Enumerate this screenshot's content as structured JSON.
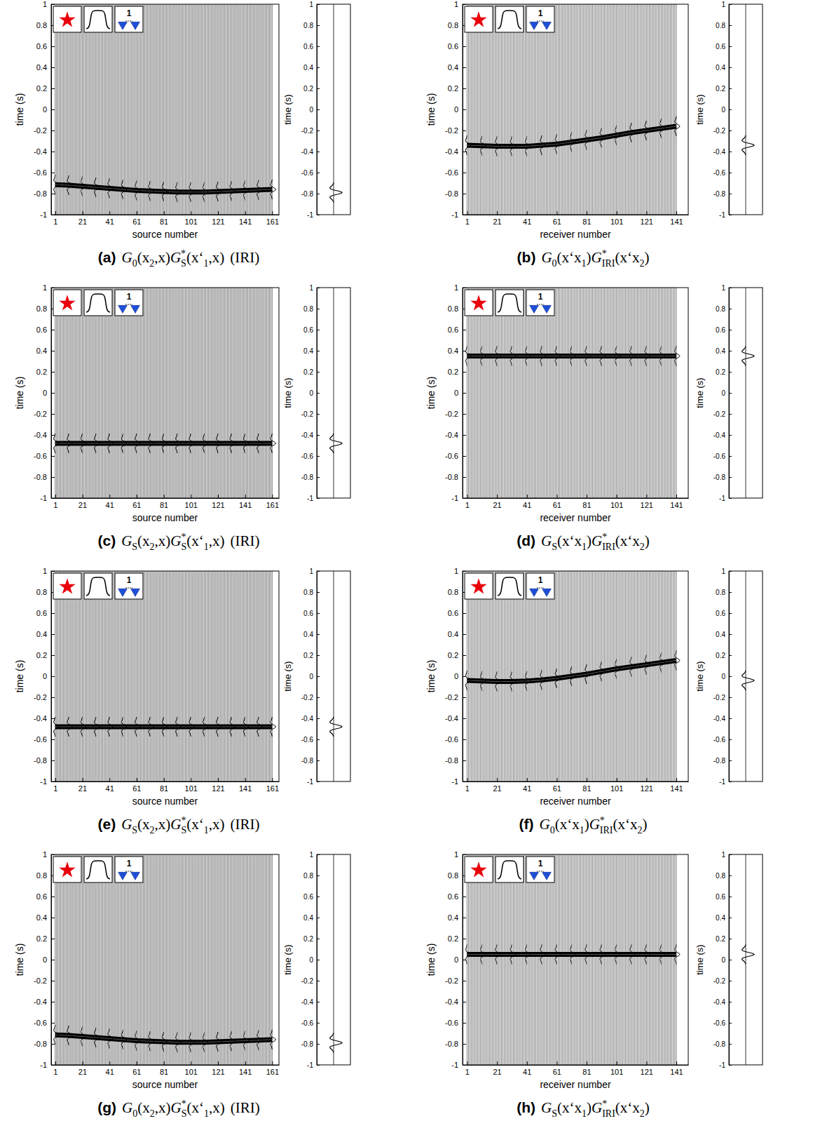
{
  "chart_data": [
    {
      "type": "wiggle",
      "caption": {
        "letter": "(a)",
        "formula": [
          {
            "text": "G",
            "sub": "0"
          },
          {
            "text": "(x",
            "sub": "2"
          },
          {
            "text": ",x)"
          },
          {
            "text": "G",
            "sup": "*",
            "sub": "S"
          },
          {
            "text": "(x‘",
            "sub": "1"
          },
          {
            "text": ",x)"
          }
        ],
        "suffix": "(IRI)"
      },
      "xlabel": "source number",
      "ylabel": "time (s)",
      "inset_label": "1",
      "xlim": [
        -2,
        166
      ],
      "xticks": [
        1,
        21,
        41,
        61,
        81,
        101,
        121,
        141,
        161
      ],
      "ylim": [
        -1,
        1
      ],
      "yticks": [
        -1,
        -0.8,
        -0.6,
        -0.4,
        -0.2,
        0,
        0.2,
        0.4,
        0.6,
        0.8,
        1
      ],
      "x": [
        1,
        11,
        21,
        31,
        41,
        51,
        61,
        71,
        81,
        91,
        101,
        111,
        121,
        131,
        141,
        151,
        161
      ],
      "values": [
        -0.715,
        -0.72,
        -0.73,
        -0.74,
        -0.75,
        -0.76,
        -0.77,
        -0.775,
        -0.78,
        -0.785,
        -0.785,
        -0.785,
        -0.78,
        -0.775,
        -0.77,
        -0.765,
        -0.76
      ],
      "stack": {
        "ylabel": "time (s)",
        "ylim": [
          -1,
          1
        ],
        "yticks": [
          -1,
          -0.8,
          -0.6,
          -0.4,
          -0.2,
          0,
          0.2,
          0.4,
          0.6,
          0.8,
          1
        ],
        "value": -0.79
      }
    },
    {
      "type": "wiggle",
      "caption": {
        "letter": "(b)",
        "formula": [
          {
            "text": "G",
            "sub": "0"
          },
          {
            "text": "(x‘x",
            "sub": "1"
          },
          {
            "text": ")"
          },
          {
            "text": "G",
            "sup": "*",
            "sub": "IRI"
          },
          {
            "text": "(x‘x",
            "sub": "2"
          },
          {
            "text": ")"
          }
        ]
      },
      "xlabel": "receiver number",
      "ylabel": "time (s)",
      "inset_label": "1",
      "xlim": [
        -2,
        149
      ],
      "xticks": [
        1,
        21,
        41,
        61,
        81,
        101,
        121,
        141
      ],
      "ylim": [
        -1,
        1
      ],
      "yticks": [
        -1,
        -0.8,
        -0.6,
        -0.4,
        -0.2,
        0,
        0.2,
        0.4,
        0.6,
        0.8,
        1
      ],
      "x": [
        1,
        11,
        21,
        31,
        41,
        51,
        61,
        71,
        81,
        91,
        101,
        111,
        121,
        131,
        141
      ],
      "values": [
        -0.34,
        -0.345,
        -0.35,
        -0.35,
        -0.35,
        -0.34,
        -0.33,
        -0.31,
        -0.29,
        -0.27,
        -0.245,
        -0.22,
        -0.2,
        -0.18,
        -0.16
      ],
      "stack": {
        "ylabel": "time (s)",
        "ylim": [
          -1,
          1
        ],
        "yticks": [
          -1,
          -0.8,
          -0.6,
          -0.4,
          -0.2,
          0,
          0.2,
          0.4,
          0.6,
          0.8,
          1
        ],
        "value": -0.34
      }
    },
    {
      "type": "wiggle",
      "caption": {
        "letter": "(c)",
        "formula": [
          {
            "text": "G",
            "sub": "S"
          },
          {
            "text": "(x",
            "sub": "2"
          },
          {
            "text": ",x)"
          },
          {
            "text": "G",
            "sup": "*",
            "sub": "S"
          },
          {
            "text": "(x‘",
            "sub": "1"
          },
          {
            "text": ",x)"
          }
        ],
        "suffix": "(IRI)"
      },
      "xlabel": "source number",
      "ylabel": "time (s)",
      "inset_label": "1",
      "xlim": [
        -2,
        166
      ],
      "xticks": [
        1,
        21,
        41,
        61,
        81,
        101,
        121,
        141,
        161
      ],
      "ylim": [
        -1,
        1
      ],
      "yticks": [
        -1,
        -0.8,
        -0.6,
        -0.4,
        -0.2,
        0,
        0.2,
        0.4,
        0.6,
        0.8,
        1
      ],
      "x": [
        1,
        11,
        21,
        31,
        41,
        51,
        61,
        71,
        81,
        91,
        101,
        111,
        121,
        131,
        141,
        151,
        161
      ],
      "values": [
        -0.48,
        -0.48,
        -0.48,
        -0.48,
        -0.48,
        -0.48,
        -0.48,
        -0.48,
        -0.48,
        -0.48,
        -0.48,
        -0.48,
        -0.48,
        -0.48,
        -0.48,
        -0.48,
        -0.48
      ],
      "stack": {
        "ylabel": "time (s)",
        "ylim": [
          -1,
          1
        ],
        "yticks": [
          -1,
          -0.8,
          -0.6,
          -0.4,
          -0.2,
          0,
          0.2,
          0.4,
          0.6,
          0.8,
          1
        ],
        "value": -0.48
      }
    },
    {
      "type": "wiggle",
      "caption": {
        "letter": "(d)",
        "formula": [
          {
            "text": "G",
            "sub": "S"
          },
          {
            "text": "(x‘x",
            "sub": "1"
          },
          {
            "text": ")"
          },
          {
            "text": "G",
            "sup": "*",
            "sub": "IRI"
          },
          {
            "text": "(x‘x",
            "sub": "2"
          },
          {
            "text": ")"
          }
        ]
      },
      "xlabel": "receiver number",
      "ylabel": "time (s)",
      "inset_label": "1",
      "xlim": [
        -2,
        149
      ],
      "xticks": [
        1,
        21,
        41,
        61,
        81,
        101,
        121,
        141
      ],
      "ylim": [
        -1,
        1
      ],
      "yticks": [
        -1,
        -0.8,
        -0.6,
        -0.4,
        -0.2,
        0,
        0.2,
        0.4,
        0.6,
        0.8,
        1
      ],
      "x": [
        1,
        11,
        21,
        31,
        41,
        51,
        61,
        71,
        81,
        91,
        101,
        111,
        121,
        131,
        141
      ],
      "values": [
        0.35,
        0.35,
        0.35,
        0.35,
        0.35,
        0.35,
        0.35,
        0.35,
        0.35,
        0.35,
        0.35,
        0.35,
        0.35,
        0.35,
        0.35
      ],
      "stack": {
        "ylabel": "time (s)",
        "ylim": [
          -1,
          1
        ],
        "yticks": [
          -1,
          -0.8,
          -0.6,
          -0.4,
          -0.2,
          0,
          0.2,
          0.4,
          0.6,
          0.8,
          1
        ],
        "value": 0.35
      }
    },
    {
      "type": "wiggle",
      "caption": {
        "letter": "(e)",
        "formula": [
          {
            "text": "G",
            "sub": "S"
          },
          {
            "text": "(x",
            "sub": "2"
          },
          {
            "text": ",x)"
          },
          {
            "text": "G",
            "sup": "*",
            "sub": "S"
          },
          {
            "text": "(x‘",
            "sub": "1"
          },
          {
            "text": ",x)"
          }
        ],
        "suffix": "(IRI)"
      },
      "xlabel": "source number",
      "ylabel": "time (s)",
      "inset_label": "1",
      "xlim": [
        -2,
        166
      ],
      "xticks": [
        1,
        21,
        41,
        61,
        81,
        101,
        121,
        141,
        161
      ],
      "ylim": [
        -1,
        1
      ],
      "yticks": [
        -1,
        -0.8,
        -0.6,
        -0.4,
        -0.2,
        0,
        0.2,
        0.4,
        0.6,
        0.8,
        1
      ],
      "x": [
        1,
        11,
        21,
        31,
        41,
        51,
        61,
        71,
        81,
        91,
        101,
        111,
        121,
        131,
        141,
        151,
        161
      ],
      "values": [
        -0.48,
        -0.48,
        -0.48,
        -0.48,
        -0.48,
        -0.48,
        -0.48,
        -0.48,
        -0.48,
        -0.48,
        -0.48,
        -0.48,
        -0.48,
        -0.48,
        -0.48,
        -0.48,
        -0.48
      ],
      "stack": {
        "ylabel": "time (s)",
        "ylim": [
          -1,
          1
        ],
        "yticks": [
          -1,
          -0.8,
          -0.6,
          -0.4,
          -0.2,
          0,
          0.2,
          0.4,
          0.6,
          0.8,
          1
        ],
        "value": -0.48
      }
    },
    {
      "type": "wiggle",
      "caption": {
        "letter": "(f)",
        "formula": [
          {
            "text": "G",
            "sub": "0"
          },
          {
            "text": "(x‘x",
            "sub": "1"
          },
          {
            "text": ")"
          },
          {
            "text": "G",
            "sup": "*",
            "sub": "IRI"
          },
          {
            "text": "(x‘x",
            "sub": "2"
          },
          {
            "text": ")"
          }
        ]
      },
      "xlabel": "receiver number",
      "ylabel": "time (s)",
      "inset_label": "1",
      "xlim": [
        -2,
        149
      ],
      "xticks": [
        1,
        21,
        41,
        61,
        81,
        101,
        121,
        141
      ],
      "ylim": [
        -1,
        1
      ],
      "yticks": [
        -1,
        -0.8,
        -0.6,
        -0.4,
        -0.2,
        0,
        0.2,
        0.4,
        0.6,
        0.8,
        1
      ],
      "x": [
        1,
        11,
        21,
        31,
        41,
        51,
        61,
        71,
        81,
        91,
        101,
        111,
        121,
        131,
        141
      ],
      "values": [
        -0.04,
        -0.045,
        -0.05,
        -0.05,
        -0.045,
        -0.035,
        -0.02,
        0,
        0.02,
        0.045,
        0.07,
        0.09,
        0.11,
        0.13,
        0.15
      ],
      "stack": {
        "ylabel": "time (s)",
        "ylim": [
          -1,
          1
        ],
        "yticks": [
          -1,
          -0.8,
          -0.6,
          -0.4,
          -0.2,
          0,
          0.2,
          0.4,
          0.6,
          0.8,
          1
        ],
        "value": -0.04
      }
    },
    {
      "type": "wiggle",
      "caption": {
        "letter": "(g)",
        "formula": [
          {
            "text": "G",
            "sub": "0"
          },
          {
            "text": "(x",
            "sub": "2"
          },
          {
            "text": ",x)"
          },
          {
            "text": "G",
            "sup": "*",
            "sub": "S"
          },
          {
            "text": "(x‘",
            "sub": "1"
          },
          {
            "text": ",x)"
          }
        ],
        "suffix": "(IRI)"
      },
      "xlabel": "source number",
      "ylabel": "time (s)",
      "inset_label": "1",
      "xlim": [
        -2,
        166
      ],
      "xticks": [
        1,
        21,
        41,
        61,
        81,
        101,
        121,
        141,
        161
      ],
      "ylim": [
        -1,
        1
      ],
      "yticks": [
        -1,
        -0.8,
        -0.6,
        -0.4,
        -0.2,
        0,
        0.2,
        0.4,
        0.6,
        0.8,
        1
      ],
      "x": [
        1,
        11,
        21,
        31,
        41,
        51,
        61,
        71,
        81,
        91,
        101,
        111,
        121,
        131,
        141,
        151,
        161
      ],
      "values": [
        -0.715,
        -0.72,
        -0.73,
        -0.74,
        -0.75,
        -0.76,
        -0.77,
        -0.775,
        -0.78,
        -0.785,
        -0.785,
        -0.785,
        -0.78,
        -0.775,
        -0.77,
        -0.765,
        -0.76
      ],
      "stack": {
        "ylabel": "time (s)",
        "ylim": [
          -1,
          1
        ],
        "yticks": [
          -1,
          -0.8,
          -0.6,
          -0.4,
          -0.2,
          0,
          0.2,
          0.4,
          0.6,
          0.8,
          1
        ],
        "value": -0.79
      }
    },
    {
      "type": "wiggle",
      "caption": {
        "letter": "(h)",
        "formula": [
          {
            "text": "G",
            "sub": "S"
          },
          {
            "text": "(x‘x",
            "sub": "1"
          },
          {
            "text": ")"
          },
          {
            "text": "G",
            "sup": "*",
            "sub": "IRI"
          },
          {
            "text": "(x‘x",
            "sub": "2"
          },
          {
            "text": ")"
          }
        ]
      },
      "xlabel": "receiver number",
      "ylabel": "time (s)",
      "inset_label": "1",
      "xlim": [
        -2,
        149
      ],
      "xticks": [
        1,
        21,
        41,
        61,
        81,
        101,
        121,
        141
      ],
      "ylim": [
        -1,
        1
      ],
      "yticks": [
        -1,
        -0.8,
        -0.6,
        -0.4,
        -0.2,
        0,
        0.2,
        0.4,
        0.6,
        0.8,
        1
      ],
      "x": [
        1,
        11,
        21,
        31,
        41,
        51,
        61,
        71,
        81,
        91,
        101,
        111,
        121,
        131,
        141
      ],
      "values": [
        0.05,
        0.05,
        0.05,
        0.05,
        0.05,
        0.05,
        0.05,
        0.05,
        0.05,
        0.05,
        0.05,
        0.05,
        0.05,
        0.05,
        0.05
      ],
      "stack": {
        "ylabel": "time (s)",
        "ylim": [
          -1,
          1
        ],
        "yticks": [
          -1,
          -0.8,
          -0.6,
          -0.4,
          -0.2,
          0,
          0.2,
          0.4,
          0.6,
          0.8,
          1
        ],
        "value": 0.05
      }
    }
  ]
}
